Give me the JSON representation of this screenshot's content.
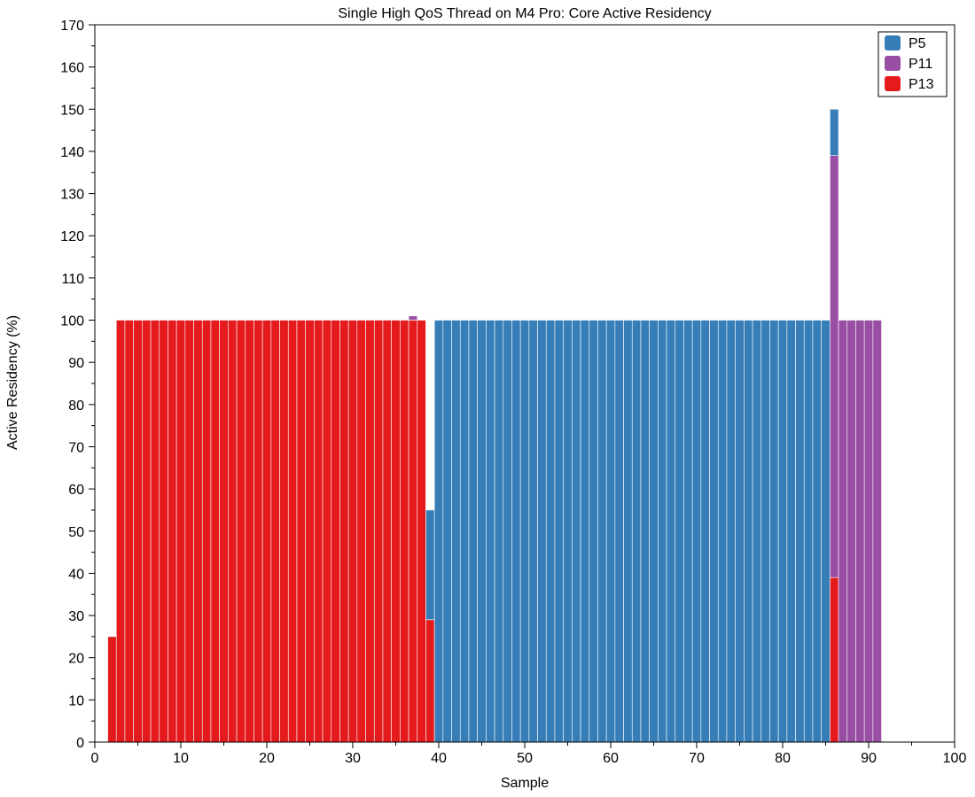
{
  "chart_data": {
    "type": "bar",
    "stacked": true,
    "title": "Single High QoS Thread on M4 Pro: Core Active Residency",
    "xlabel": "Sample",
    "ylabel": "Active Residency (%)",
    "xlim": [
      0,
      100
    ],
    "ylim": [
      0,
      170
    ],
    "x_ticks": [
      0,
      10,
      20,
      30,
      40,
      50,
      60,
      70,
      80,
      90,
      100
    ],
    "y_ticks": [
      0,
      10,
      20,
      30,
      40,
      50,
      60,
      70,
      80,
      90,
      100,
      110,
      120,
      130,
      140,
      150,
      160,
      170
    ],
    "grid": false,
    "legend_position": "top-right",
    "series": [
      {
        "name": "P13",
        "color": "#e41a1c",
        "points": [
          [
            2,
            25
          ],
          [
            3,
            100
          ],
          [
            4,
            100
          ],
          [
            5,
            100
          ],
          [
            6,
            100
          ],
          [
            7,
            100
          ],
          [
            8,
            100
          ],
          [
            9,
            100
          ],
          [
            10,
            100
          ],
          [
            11,
            100
          ],
          [
            12,
            100
          ],
          [
            13,
            100
          ],
          [
            14,
            100
          ],
          [
            15,
            100
          ],
          [
            16,
            100
          ],
          [
            17,
            100
          ],
          [
            18,
            100
          ],
          [
            19,
            100
          ],
          [
            20,
            100
          ],
          [
            21,
            100
          ],
          [
            22,
            100
          ],
          [
            23,
            100
          ],
          [
            24,
            100
          ],
          [
            25,
            100
          ],
          [
            26,
            100
          ],
          [
            27,
            100
          ],
          [
            28,
            100
          ],
          [
            29,
            100
          ],
          [
            30,
            100
          ],
          [
            31,
            100
          ],
          [
            32,
            100
          ],
          [
            33,
            100
          ],
          [
            34,
            100
          ],
          [
            35,
            100
          ],
          [
            36,
            100
          ],
          [
            37,
            100
          ],
          [
            38,
            100
          ],
          [
            39,
            29
          ],
          [
            86,
            39
          ]
        ]
      },
      {
        "name": "P11",
        "color": "#984ea3",
        "points": [
          [
            37,
            1
          ],
          [
            86,
            100
          ],
          [
            87,
            100
          ],
          [
            88,
            100
          ],
          [
            89,
            100
          ],
          [
            90,
            100
          ],
          [
            91,
            100
          ]
        ]
      },
      {
        "name": "P5",
        "color": "#377eb8",
        "points": [
          [
            39,
            26
          ],
          [
            40,
            100
          ],
          [
            41,
            100
          ],
          [
            42,
            100
          ],
          [
            43,
            100
          ],
          [
            44,
            100
          ],
          [
            45,
            100
          ],
          [
            46,
            100
          ],
          [
            47,
            100
          ],
          [
            48,
            100
          ],
          [
            49,
            100
          ],
          [
            50,
            100
          ],
          [
            51,
            100
          ],
          [
            52,
            100
          ],
          [
            53,
            100
          ],
          [
            54,
            100
          ],
          [
            55,
            100
          ],
          [
            56,
            100
          ],
          [
            57,
            100
          ],
          [
            58,
            100
          ],
          [
            59,
            100
          ],
          [
            60,
            100
          ],
          [
            61,
            100
          ],
          [
            62,
            100
          ],
          [
            63,
            100
          ],
          [
            64,
            100
          ],
          [
            65,
            100
          ],
          [
            66,
            100
          ],
          [
            67,
            100
          ],
          [
            68,
            100
          ],
          [
            69,
            100
          ],
          [
            70,
            100
          ],
          [
            71,
            100
          ],
          [
            72,
            100
          ],
          [
            73,
            100
          ],
          [
            74,
            100
          ],
          [
            75,
            100
          ],
          [
            76,
            100
          ],
          [
            77,
            100
          ],
          [
            78,
            100
          ],
          [
            79,
            100
          ],
          [
            80,
            100
          ],
          [
            81,
            100
          ],
          [
            82,
            100
          ],
          [
            83,
            100
          ],
          [
            84,
            100
          ],
          [
            85,
            100
          ],
          [
            86,
            11
          ]
        ]
      }
    ],
    "legend_order": [
      "P5",
      "P11",
      "P13"
    ]
  }
}
